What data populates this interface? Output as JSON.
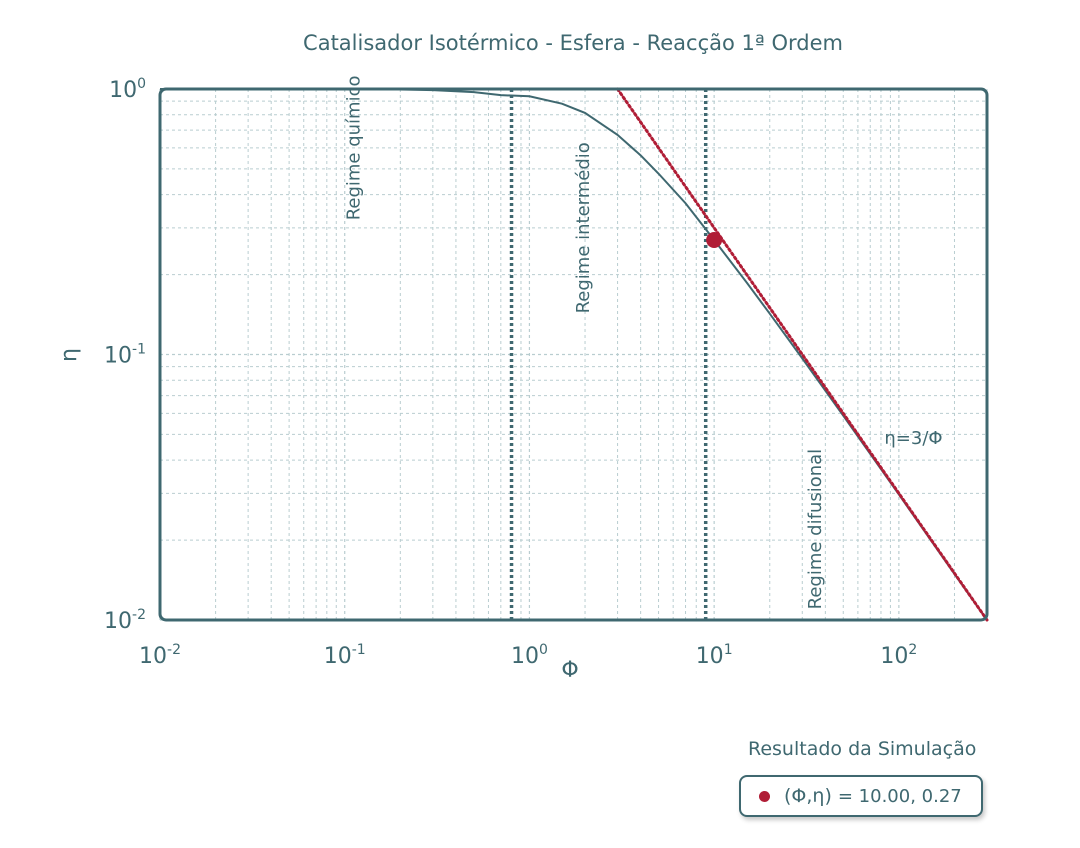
{
  "chart_data": {
    "type": "line",
    "title": "Catalisador Isotérmico - Esfera - Reacção 1ª Ordem",
    "xlabel": "Φ",
    "ylabel": "η",
    "xscale": "log",
    "yscale": "log",
    "xlim": [
      0.01,
      300
    ],
    "ylim": [
      0.01,
      1
    ],
    "x_ticks": [
      {
        "value": 0.01,
        "base": "10",
        "exp": "-2"
      },
      {
        "value": 0.1,
        "base": "10",
        "exp": "-1"
      },
      {
        "value": 1,
        "base": "10",
        "exp": "0"
      },
      {
        "value": 10,
        "base": "10",
        "exp": "1"
      },
      {
        "value": 100,
        "base": "10",
        "exp": "2"
      }
    ],
    "y_ticks": [
      {
        "value": 1,
        "base": "10",
        "exp": "0"
      },
      {
        "value": 0.1,
        "base": "10",
        "exp": "-1"
      },
      {
        "value": 0.01,
        "base": "10",
        "exp": "-2"
      }
    ],
    "grid": true,
    "series": [
      {
        "name": "",
        "style": "solid",
        "color": "#3f6870",
        "points": [
          [
            0.01,
            1.0
          ],
          [
            0.02,
            1.0
          ],
          [
            0.05,
            0.9997
          ],
          [
            0.1,
            0.9989
          ],
          [
            0.2,
            0.9956
          ],
          [
            0.3,
            0.99
          ],
          [
            0.5,
            0.9728
          ],
          [
            0.7,
            0.9482
          ],
          [
            1.0,
            0.9391
          ],
          [
            1.5,
            0.8806
          ],
          [
            2.0,
            0.8127
          ],
          [
            3.0,
            0.6716
          ],
          [
            4.0,
            0.5625
          ],
          [
            5.0,
            0.48
          ],
          [
            7.0,
            0.3714
          ],
          [
            10.0,
            0.27
          ],
          [
            15.0,
            0.1867
          ],
          [
            20.0,
            0.1425
          ],
          [
            30.0,
            0.0967
          ],
          [
            50.0,
            0.0588
          ],
          [
            100.0,
            0.0297
          ],
          [
            200.0,
            0.0149
          ],
          [
            300.0,
            0.01
          ]
        ]
      },
      {
        "name": "η=3/Φ",
        "style": "dotted",
        "color": "#b01d36",
        "points": [
          [
            3.0,
            1.0
          ],
          [
            300.0,
            0.01
          ]
        ]
      }
    ],
    "vlines": [
      {
        "x": 0.8,
        "style": "dotted",
        "color": "#3f6870"
      },
      {
        "x": 9.0,
        "style": "dotted",
        "color": "#3f6870"
      }
    ],
    "annotations": [
      {
        "text": "Regime químico",
        "x": 0.12,
        "y": 0.6,
        "rotation": -90
      },
      {
        "text": "Regime intermédio",
        "x": 2.1,
        "y": 0.3,
        "rotation": -90
      },
      {
        "text": "Regime difusional",
        "x": 38,
        "y": 0.022,
        "rotation": -90
      },
      {
        "text": "η=3/Φ",
        "x": 120,
        "y": 0.046,
        "rotation": 0
      }
    ],
    "marker": {
      "x": 10.0,
      "y": 0.27,
      "color": "#b01d36"
    }
  },
  "result": {
    "title": "Resultado da Simulação",
    "label": "(Φ,η)",
    "value": "= 10.00, 0.27"
  },
  "colors": {
    "axis": "#3f6870",
    "grid": "#b9cdd0",
    "accent": "#b01d36"
  }
}
